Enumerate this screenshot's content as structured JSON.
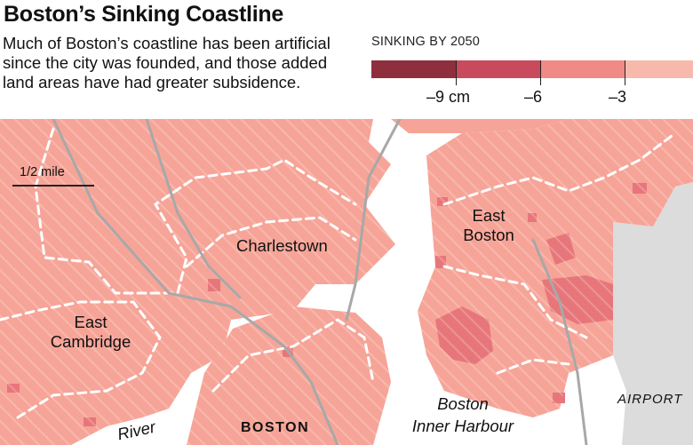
{
  "title": "Boston’s Sinking Coastline",
  "subtitle": "Much of Boston’s coastline has been artificial since the city was founded, and those added land areas have had greater subsidence.",
  "legend": {
    "title": "SINKING BY 2050",
    "swatches": [
      {
        "color": "#8f2f3e"
      },
      {
        "color": "#c94a5c"
      },
      {
        "color": "#f08a85"
      },
      {
        "color": "#f8b9ad"
      }
    ],
    "tick_labels": [
      "–9 cm",
      "–6",
      "–3"
    ]
  },
  "scale": {
    "label": "1/2 mile"
  },
  "places": {
    "charlestown": "Charlestown",
    "east_boston_1": "East",
    "east_boston_2": "Boston",
    "east_cambridge_1": "East",
    "east_cambridge_2": "Cambridge",
    "boston": "BOSTON",
    "harbour_1": "Boston",
    "harbour_2": "Inner Harbour",
    "airport": "AIRPORT",
    "river": "River"
  },
  "colors": {
    "land_base": "#f6a497",
    "water": "#ffffff",
    "grey_land": "#dcdcdc",
    "dark_patch": "#e7767b",
    "boundary": "#ffffff"
  }
}
